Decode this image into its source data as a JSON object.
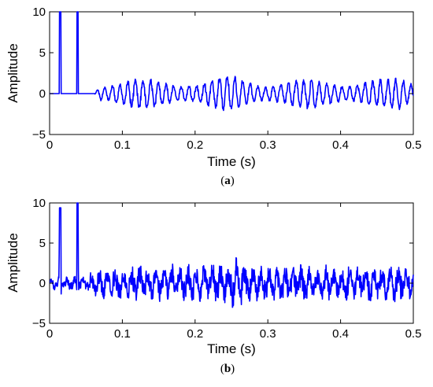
{
  "chart_data": [
    {
      "type": "line",
      "panel_label": "a",
      "xlabel": "Time (s)",
      "ylabel": "Amplitude",
      "xlim": [
        0,
        0.5
      ],
      "ylim": [
        -5,
        10
      ],
      "xticks": [
        "0",
        "0.1",
        "0.2",
        "0.3",
        "0.4",
        "0.5"
      ],
      "yticks": [
        "-5",
        "0",
        "5",
        "10"
      ],
      "grid": false,
      "line_color": "#0000ff",
      "series": [
        {
          "x": [
            0,
            0.013,
            0.0135,
            0.0145,
            0.0155,
            0.016,
            0.037,
            0.0375,
            0.0385,
            0.0395,
            0.04,
            0.061,
            0.064,
            0.07,
            0.08,
            0.09,
            0.1,
            0.11,
            0.12,
            0.13,
            0.14,
            0.15,
            0.16,
            0.17,
            0.18,
            0.19,
            0.2,
            0.21,
            0.22,
            0.23,
            0.24,
            0.25,
            0.26,
            0.27,
            0.28,
            0.29,
            0.3,
            0.31,
            0.32,
            0.33,
            0.34,
            0.35,
            0.36,
            0.37,
            0.38,
            0.39,
            0.4,
            0.41,
            0.42,
            0.43,
            0.44,
            0.45,
            0.46,
            0.47,
            0.48,
            0.49,
            0.5
          ],
          "y": [
            0,
            0,
            10,
            10,
            10,
            0,
            0,
            10,
            10,
            10,
            0,
            0,
            0.5,
            1.5,
            1.5,
            1.8,
            1.8,
            1.8,
            1.7,
            1.6,
            1.6,
            1.6,
            1.6,
            1.5,
            1.6,
            1.7,
            1.6,
            1.6,
            1.8,
            1.9,
            1.9,
            2.0,
            1.9,
            1.8,
            1.6,
            1.6,
            1.6,
            1.7,
            1.6,
            1.6,
            1.7,
            1.6,
            1.7,
            1.6,
            1.6,
            1.8,
            1.7,
            1.6,
            1.7,
            1.7,
            1.8,
            1.7,
            1.6,
            1.7,
            1.9,
            1.7,
            1.6
          ]
        }
      ]
    },
    {
      "type": "line",
      "panel_label": "b",
      "xlabel": "Time (s)",
      "ylabel": "Amplitude",
      "xlim": [
        0,
        0.5
      ],
      "ylim": [
        -5,
        10
      ],
      "xticks": [
        "0",
        "0.1",
        "0.2",
        "0.3",
        "0.4",
        "0.5"
      ],
      "yticks": [
        "-5",
        "0",
        "5",
        "10"
      ],
      "grid": false,
      "line_color": "#0000ff",
      "series": [
        {
          "x": [
            0,
            0.013,
            0.0135,
            0.0145,
            0.0155,
            0.016,
            0.037,
            0.0375,
            0.0385,
            0.0395,
            0.04,
            0.06,
            0.07,
            0.08,
            0.09,
            0.1,
            0.11,
            0.12,
            0.13,
            0.14,
            0.15,
            0.16,
            0.17,
            0.18,
            0.19,
            0.2,
            0.21,
            0.22,
            0.23,
            0.24,
            0.25,
            0.26,
            0.27,
            0.28,
            0.29,
            0.3,
            0.31,
            0.32,
            0.33,
            0.34,
            0.35,
            0.36,
            0.37,
            0.38,
            0.39,
            0.4,
            0.41,
            0.42,
            0.43,
            0.44,
            0.45,
            0.46,
            0.47,
            0.48,
            0.49,
            0.5
          ],
          "y": [
            0.8,
            0.8,
            9.4,
            9.4,
            9.4,
            0.8,
            0.8,
            10,
            10,
            10,
            0.8,
            1.3,
            2.0,
            1.8,
            2.0,
            2.1,
            1.9,
            2.2,
            2.0,
            1.9,
            2.1,
            2.3,
            2.2,
            2.0,
            2.4,
            2.1,
            2.2,
            2.6,
            2.5,
            2.3,
            2.8,
            3.1,
            2.6,
            2.3,
            2.2,
            2.1,
            2.2,
            2.1,
            2.0,
            2.2,
            2.1,
            2.0,
            2.0,
            2.1,
            2.1,
            1.9,
            2.0,
            1.9,
            2.1,
            2.2,
            2.0,
            2.1,
            2.0,
            2.2,
            2.1,
            2.3
          ]
        }
      ]
    }
  ]
}
